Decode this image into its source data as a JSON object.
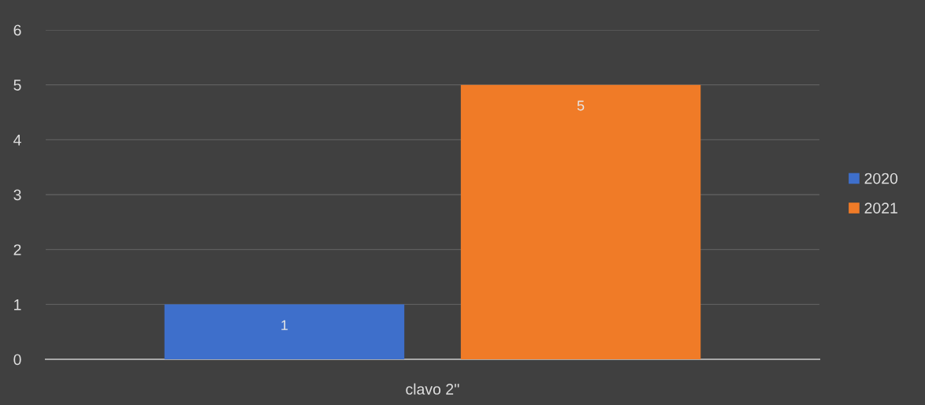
{
  "chart_data": {
    "type": "bar",
    "categories": [
      "clavo 2''"
    ],
    "series": [
      {
        "name": "2020",
        "color": "#3e6fcb",
        "values": [
          1
        ]
      },
      {
        "name": "2021",
        "color": "#f07b27",
        "values": [
          5
        ]
      }
    ],
    "ylim": [
      0,
      6
    ],
    "yticks": [
      0,
      1,
      2,
      3,
      4,
      5,
      6
    ],
    "grid": "y",
    "legend": "right",
    "data_labels": true
  }
}
